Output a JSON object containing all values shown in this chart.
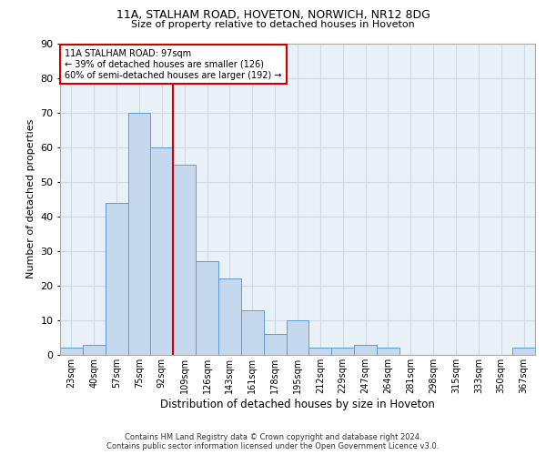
{
  "title1": "11A, STALHAM ROAD, HOVETON, NORWICH, NR12 8DG",
  "title2": "Size of property relative to detached houses in Hoveton",
  "xlabel": "Distribution of detached houses by size in Hoveton",
  "ylabel": "Number of detached properties",
  "footnote1": "Contains HM Land Registry data © Crown copyright and database right 2024.",
  "footnote2": "Contains public sector information licensed under the Open Government Licence v3.0.",
  "annotation_line1": "11A STALHAM ROAD: 97sqm",
  "annotation_line2": "← 39% of detached houses are smaller (126)",
  "annotation_line3": "60% of semi-detached houses are larger (192) →",
  "bar_labels": [
    "23sqm",
    "40sqm",
    "57sqm",
    "75sqm",
    "92sqm",
    "109sqm",
    "126sqm",
    "143sqm",
    "161sqm",
    "178sqm",
    "195sqm",
    "212sqm",
    "229sqm",
    "247sqm",
    "264sqm",
    "281sqm",
    "298sqm",
    "315sqm",
    "333sqm",
    "350sqm",
    "367sqm"
  ],
  "bar_values": [
    2,
    3,
    44,
    70,
    60,
    55,
    27,
    22,
    13,
    6,
    10,
    2,
    2,
    3,
    2,
    0,
    0,
    0,
    0,
    0,
    2
  ],
  "bar_color": "#c5d8ed",
  "bar_edge_color": "#5b9bd5",
  "grid_color": "#d0d8e4",
  "background_color": "#e8f0f8",
  "vline_color": "#cc0000",
  "vline_pos": 4.5,
  "ylim": [
    0,
    90
  ],
  "yticks": [
    0,
    10,
    20,
    30,
    40,
    50,
    60,
    70,
    80,
    90
  ]
}
